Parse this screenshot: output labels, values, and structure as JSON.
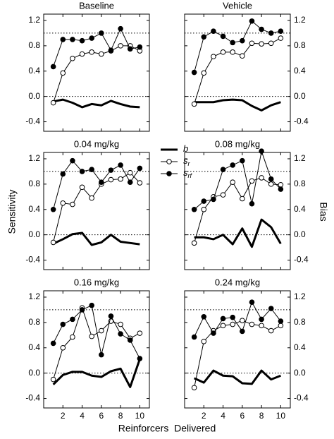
{
  "figure": {
    "ylabel": "Sensitivity",
    "y2label": "Bias",
    "xlabel": "Reinforcers  Delivered"
  },
  "chart_data": [
    {
      "type": "line",
      "title": "Baseline",
      "xlim": [
        0,
        11
      ],
      "xticks": [
        2,
        4,
        6,
        8,
        10
      ],
      "xtick_labels": false,
      "ylim": [
        -0.55,
        1.3
      ],
      "yticks": [
        -0.4,
        {
          "value": 0,
          "label": "0.0"
        },
        0.4,
        0.8,
        1.2
      ],
      "ytick_side": "left",
      "reference_lines": [
        1.0,
        0.0
      ],
      "x": [
        1,
        2,
        3,
        4,
        5,
        6,
        7,
        8,
        9,
        10
      ],
      "series": [
        {
          "name": "b",
          "color": "#000000",
          "marker": "none",
          "values": [
            -0.08,
            -0.05,
            -0.1,
            -0.17,
            -0.12,
            -0.14,
            -0.07,
            -0.12,
            -0.16,
            -0.17
          ]
        },
        {
          "name": "s",
          "sub": "r",
          "color": "#000000",
          "marker": "open",
          "values": [
            -0.1,
            0.37,
            0.6,
            0.67,
            0.7,
            0.67,
            0.72,
            0.8,
            0.8,
            0.72
          ]
        },
        {
          "name": "s",
          "sub": "rf",
          "color": "#000000",
          "marker": "filled",
          "values": [
            0.47,
            0.9,
            0.9,
            0.88,
            0.92,
            1.0,
            0.73,
            1.07,
            0.75,
            0.78
          ]
        }
      ]
    },
    {
      "type": "line",
      "title": "Vehicle",
      "xlim": [
        0,
        11
      ],
      "xticks": [
        2,
        4,
        6,
        8,
        10
      ],
      "xtick_labels": false,
      "ylim": [
        -0.55,
        1.3
      ],
      "yticks": [
        -0.4,
        {
          "value": 0,
          "label": "0.0"
        },
        0.4,
        0.8,
        1.2
      ],
      "ytick_side": "right",
      "reference_lines": [
        1.0,
        0.0
      ],
      "x": [
        1,
        2,
        3,
        4,
        5,
        6,
        7,
        8,
        9,
        10
      ],
      "series": [
        {
          "name": "b",
          "color": "#000000",
          "marker": "none",
          "values": [
            -0.09,
            -0.09,
            -0.09,
            -0.06,
            -0.05,
            -0.06,
            -0.15,
            -0.22,
            -0.14,
            -0.09
          ]
        },
        {
          "name": "s",
          "sub": "r",
          "color": "#000000",
          "marker": "open",
          "values": [
            -0.12,
            0.37,
            0.63,
            0.7,
            0.7,
            0.64,
            0.84,
            0.83,
            0.84,
            0.92
          ]
        },
        {
          "name": "s",
          "sub": "rf",
          "color": "#000000",
          "marker": "filled",
          "values": [
            0.38,
            0.94,
            1.03,
            0.95,
            0.85,
            0.88,
            1.19,
            1.06,
            1.0,
            1.03
          ]
        }
      ]
    },
    {
      "type": "line",
      "title": "0.04 mg/kg",
      "xlim": [
        0,
        11
      ],
      "xticks": [
        2,
        4,
        6,
        8,
        10
      ],
      "xtick_labels": false,
      "ylim": [
        -0.55,
        1.3
      ],
      "yticks": [
        -0.4,
        {
          "value": 0,
          "label": "0.0"
        },
        0.4,
        0.8,
        1.2
      ],
      "ytick_side": "left",
      "reference_lines": [
        1.0,
        0.0
      ],
      "x": [
        1,
        2,
        3,
        4,
        5,
        6,
        7,
        8,
        9,
        10
      ],
      "series": [
        {
          "name": "b",
          "color": "#000000",
          "marker": "none",
          "values": [
            -0.14,
            -0.07,
            0.01,
            0.03,
            -0.16,
            -0.12,
            0.0,
            -0.11,
            -0.13,
            -0.15
          ]
        },
        {
          "name": "s",
          "sub": "r",
          "color": "#000000",
          "marker": "open",
          "values": [
            -0.12,
            0.5,
            0.48,
            0.75,
            0.58,
            0.8,
            0.87,
            0.88,
            0.98,
            0.82
          ]
        },
        {
          "name": "s",
          "sub": "rf",
          "color": "#000000",
          "marker": "filled",
          "values": [
            0.4,
            0.96,
            1.17,
            1.0,
            1.03,
            0.83,
            1.02,
            1.1,
            0.83,
            1.05
          ]
        }
      ]
    },
    {
      "type": "line",
      "title": "0.08 mg/kg",
      "xlim": [
        0,
        11
      ],
      "xticks": [
        2,
        4,
        6,
        8,
        10
      ],
      "xtick_labels": false,
      "ylim": [
        -0.55,
        1.3
      ],
      "yticks": [
        -0.4,
        {
          "value": 0,
          "label": "0.0"
        },
        0.4,
        0.8,
        1.2
      ],
      "ytick_side": "right",
      "reference_lines": [
        1.0,
        0.0
      ],
      "x": [
        1,
        2,
        3,
        4,
        5,
        6,
        7,
        8,
        9,
        10
      ],
      "series": [
        {
          "name": "b",
          "color": "#000000",
          "marker": "none",
          "values": [
            -0.04,
            -0.04,
            -0.07,
            0.0,
            -0.15,
            0.1,
            -0.19,
            0.24,
            0.12,
            -0.14
          ]
        },
        {
          "name": "s",
          "sub": "r",
          "color": "#000000",
          "marker": "open",
          "values": [
            -0.13,
            0.4,
            0.6,
            0.63,
            0.83,
            0.57,
            0.85,
            0.9,
            0.8,
            0.79
          ]
        },
        {
          "name": "s",
          "sub": "rf",
          "color": "#000000",
          "marker": "filled",
          "values": [
            0.4,
            0.53,
            0.56,
            1.03,
            1.1,
            1.17,
            0.49,
            1.32,
            0.88,
            0.72
          ]
        }
      ]
    },
    {
      "type": "line",
      "title": "0.16 mg/kg",
      "xlim": [
        0,
        11
      ],
      "xticks": [
        2,
        4,
        6,
        8,
        10
      ],
      "xtick_labels": true,
      "ylim": [
        -0.55,
        1.3
      ],
      "yticks": [
        -0.4,
        {
          "value": 0,
          "label": "0.0"
        },
        0.4,
        0.8,
        1.2
      ],
      "ytick_side": "left",
      "reference_lines": [
        1.0,
        0.0
      ],
      "x": [
        1,
        2,
        3,
        4,
        5,
        6,
        7,
        8,
        9,
        10
      ],
      "series": [
        {
          "name": "b",
          "color": "#000000",
          "marker": "none",
          "values": [
            -0.18,
            -0.03,
            0.02,
            0.02,
            -0.04,
            -0.06,
            0.03,
            0.07,
            -0.22,
            0.22
          ]
        },
        {
          "name": "s",
          "sub": "r",
          "color": "#000000",
          "marker": "open",
          "values": [
            -0.1,
            0.4,
            0.57,
            1.03,
            0.58,
            0.67,
            0.82,
            0.77,
            0.55,
            0.63
          ]
        },
        {
          "name": "s",
          "sub": "rf",
          "color": "#000000",
          "marker": "filled",
          "values": [
            0.47,
            0.77,
            0.85,
            1.0,
            1.07,
            0.29,
            0.9,
            0.62,
            0.52,
            0.23
          ]
        }
      ]
    },
    {
      "type": "line",
      "title": "0.24 mg/kg",
      "xlim": [
        0,
        11
      ],
      "xticks": [
        2,
        4,
        6,
        8,
        10
      ],
      "xtick_labels": true,
      "ylim": [
        -0.55,
        1.3
      ],
      "yticks": [
        -0.4,
        {
          "value": 0,
          "label": "0.0"
        },
        0.4,
        0.8,
        1.2
      ],
      "ytick_side": "right",
      "reference_lines": [
        1.0,
        0.0
      ],
      "x": [
        1,
        2,
        3,
        4,
        5,
        6,
        7,
        8,
        9,
        10
      ],
      "series": [
        {
          "name": "b",
          "color": "#000000",
          "marker": "none",
          "values": [
            -0.08,
            -0.15,
            0.04,
            -0.04,
            -0.05,
            -0.16,
            -0.17,
            0.04,
            -0.1,
            -0.04
          ]
        },
        {
          "name": "s",
          "sub": "r",
          "color": "#000000",
          "marker": "open",
          "values": [
            -0.23,
            0.5,
            0.67,
            0.75,
            0.77,
            0.83,
            0.77,
            0.75,
            0.67,
            0.75
          ]
        },
        {
          "name": "s",
          "sub": "rf",
          "color": "#000000",
          "marker": "filled",
          "values": [
            0.57,
            0.89,
            0.63,
            0.86,
            0.88,
            0.66,
            1.12,
            0.85,
            1.02,
            0.82
          ]
        }
      ]
    }
  ]
}
